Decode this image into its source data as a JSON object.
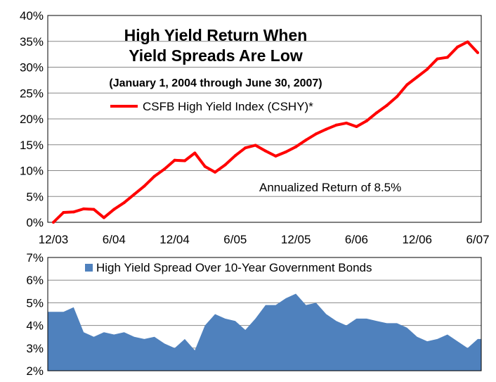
{
  "chart_data": [
    {
      "type": "line",
      "title": "High Yield Return When",
      "title_line2": "Yield Spreads Are Low",
      "subtitle": "(January 1, 2004 through June 30, 2007)",
      "legend": "CSFB High Yield Index (CSHY)*",
      "legend_position": "top-center",
      "annotation": "Annualized Return of 8.5%",
      "ylim": [
        0,
        40
      ],
      "y_ticks": [
        "0%",
        "5%",
        "10%",
        "15%",
        "20%",
        "25%",
        "30%",
        "35%",
        "40%"
      ],
      "x_ticks": [
        "12/03",
        "6/04",
        "12/04",
        "6/05",
        "12/05",
        "6/06",
        "12/06",
        "6/07"
      ],
      "grid": "horizontal",
      "series": [
        {
          "name": "CSFB High Yield Index (CSHY)*",
          "color": "#ff0000",
          "x": [
            0,
            1,
            2,
            3,
            4,
            5,
            6,
            7,
            8,
            9,
            10,
            11,
            12,
            13,
            14,
            15,
            16,
            17,
            18,
            19,
            20,
            21,
            22,
            23,
            24,
            25,
            26,
            27,
            28,
            29,
            30,
            31,
            32,
            33,
            34,
            35,
            36,
            37,
            38,
            39,
            40,
            41,
            42
          ],
          "values": [
            0,
            1.9,
            2.0,
            2.6,
            2.5,
            0.9,
            2.5,
            3.8,
            5.4,
            7.0,
            8.9,
            10.3,
            12.0,
            11.9,
            13.4,
            10.8,
            9.7,
            11.1,
            12.9,
            14.4,
            14.9,
            13.8,
            12.8,
            13.6,
            14.6,
            15.9,
            17.1,
            18.0,
            18.8,
            19.2,
            18.5,
            19.6,
            21.2,
            22.6,
            24.3,
            26.6,
            28.1,
            29.6,
            31.6,
            31.9,
            33.9,
            34.9,
            32.8
          ]
        }
      ]
    },
    {
      "type": "area",
      "legend": "High Yield Spread Over 10-Year Government Bonds",
      "legend_position": "top-left",
      "ylim": [
        2,
        7
      ],
      "y_ticks": [
        "2%",
        "3%",
        "4%",
        "5%",
        "6%",
        "7%"
      ],
      "grid": "horizontal",
      "series": [
        {
          "name": "High Yield Spread Over 10-Year Government Bonds",
          "color": "#4f81bd",
          "x": [
            0,
            1,
            2,
            3,
            4,
            5,
            6,
            7,
            8,
            9,
            10,
            11,
            12,
            13,
            14,
            15,
            16,
            17,
            18,
            19,
            20,
            21,
            22,
            23,
            24,
            25,
            26,
            27,
            28,
            29,
            30,
            31,
            32,
            33,
            34,
            35,
            36,
            37,
            38,
            39,
            40,
            41,
            42
          ],
          "values": [
            4.6,
            4.6,
            4.8,
            3.7,
            3.5,
            3.7,
            3.6,
            3.7,
            3.5,
            3.4,
            3.5,
            3.2,
            3.0,
            3.4,
            2.9,
            4.0,
            4.5,
            4.3,
            4.2,
            3.8,
            4.3,
            4.9,
            4.9,
            5.2,
            5.4,
            4.9,
            5.0,
            4.5,
            4.2,
            4.0,
            4.3,
            4.3,
            4.2,
            4.1,
            4.1,
            3.9,
            3.5,
            3.3,
            3.4,
            3.6,
            3.3,
            3.0,
            3.4
          ]
        }
      ]
    }
  ]
}
